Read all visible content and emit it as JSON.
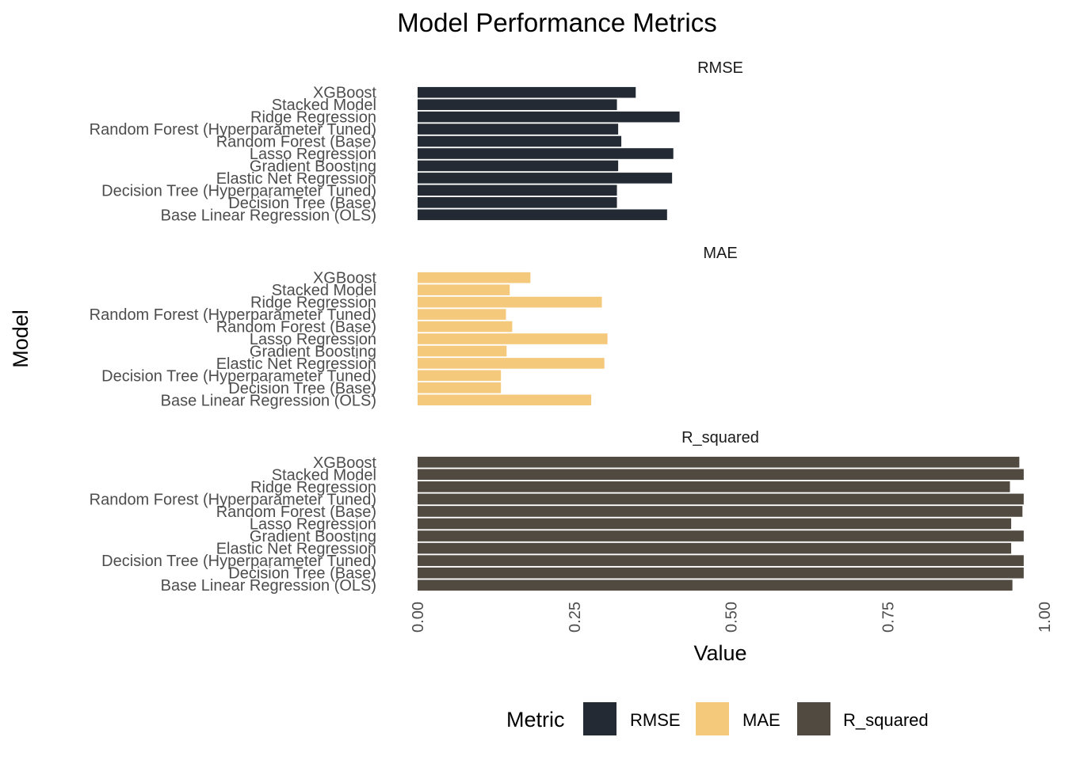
{
  "chart_data": {
    "type": "bar",
    "orientation": "horizontal",
    "facet": "Metric",
    "title": "Model Performance Metrics",
    "xlabel": "Value",
    "ylabel": "Model",
    "xlim": [
      0,
      1
    ],
    "x_ticks": [
      "0.00",
      "0.25",
      "0.50",
      "0.75",
      "1.00"
    ],
    "grid": false,
    "legend": {
      "title": "Metric",
      "position": "bottom",
      "items": [
        {
          "label": "RMSE",
          "color": "#232a33"
        },
        {
          "label": "MAE",
          "color": "#f5c97b"
        },
        {
          "label": "R_squared",
          "color": "#514a40"
        }
      ]
    },
    "categories": [
      "XGBoost",
      "Stacked Model",
      "Ridge Regression",
      "Random Forest (Hyperparameter Tuned)",
      "Random Forest (Base)",
      "Lasso Regression",
      "Gradient Boosting",
      "Elastic Net Regression",
      "Decision Tree (Hyperparameter Tuned)",
      "Decision Tree (Base)",
      "Base Linear Regression (OLS)"
    ],
    "series": [
      {
        "name": "RMSE",
        "color": "#232a33",
        "values": [
          0.348,
          0.318,
          0.418,
          0.32,
          0.325,
          0.408,
          0.32,
          0.406,
          0.318,
          0.318,
          0.398
        ]
      },
      {
        "name": "MAE",
        "color": "#f5c97b",
        "values": [
          0.18,
          0.147,
          0.294,
          0.141,
          0.151,
          0.303,
          0.142,
          0.298,
          0.133,
          0.133,
          0.277
        ]
      },
      {
        "name": "R_squared",
        "color": "#514a40",
        "values": [
          0.96,
          0.967,
          0.945,
          0.967,
          0.965,
          0.947,
          0.967,
          0.947,
          0.967,
          0.967,
          0.949
        ]
      }
    ]
  }
}
